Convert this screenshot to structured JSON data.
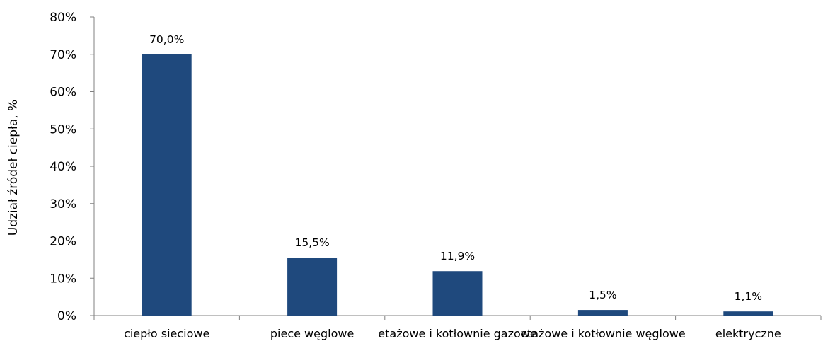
{
  "chart_data": {
    "type": "bar",
    "categories": [
      "ciepło sieciowe",
      "piece węglowe",
      "etażowe i kotłownie gazowe",
      "etażowe i kotłownie węglowe",
      "elektryczne"
    ],
    "values": [
      70.0,
      15.5,
      11.9,
      1.5,
      1.1
    ],
    "data_labels": [
      "70,0%",
      "15,5%",
      "11,9%",
      "1,5%",
      "1,1%"
    ],
    "title": "",
    "xlabel": "",
    "ylabel": "Udział źródeł ciepła, %",
    "ylim": [
      0,
      80
    ],
    "yticks": [
      0,
      10,
      20,
      30,
      40,
      50,
      60,
      70,
      80
    ],
    "ytick_labels": [
      "0%",
      "10%",
      "20%",
      "30%",
      "40%",
      "50%",
      "60%",
      "70%",
      "80%"
    ],
    "grid": false,
    "legend": "none",
    "bar_color": "#1f497d",
    "axis_color": "#808080"
  }
}
